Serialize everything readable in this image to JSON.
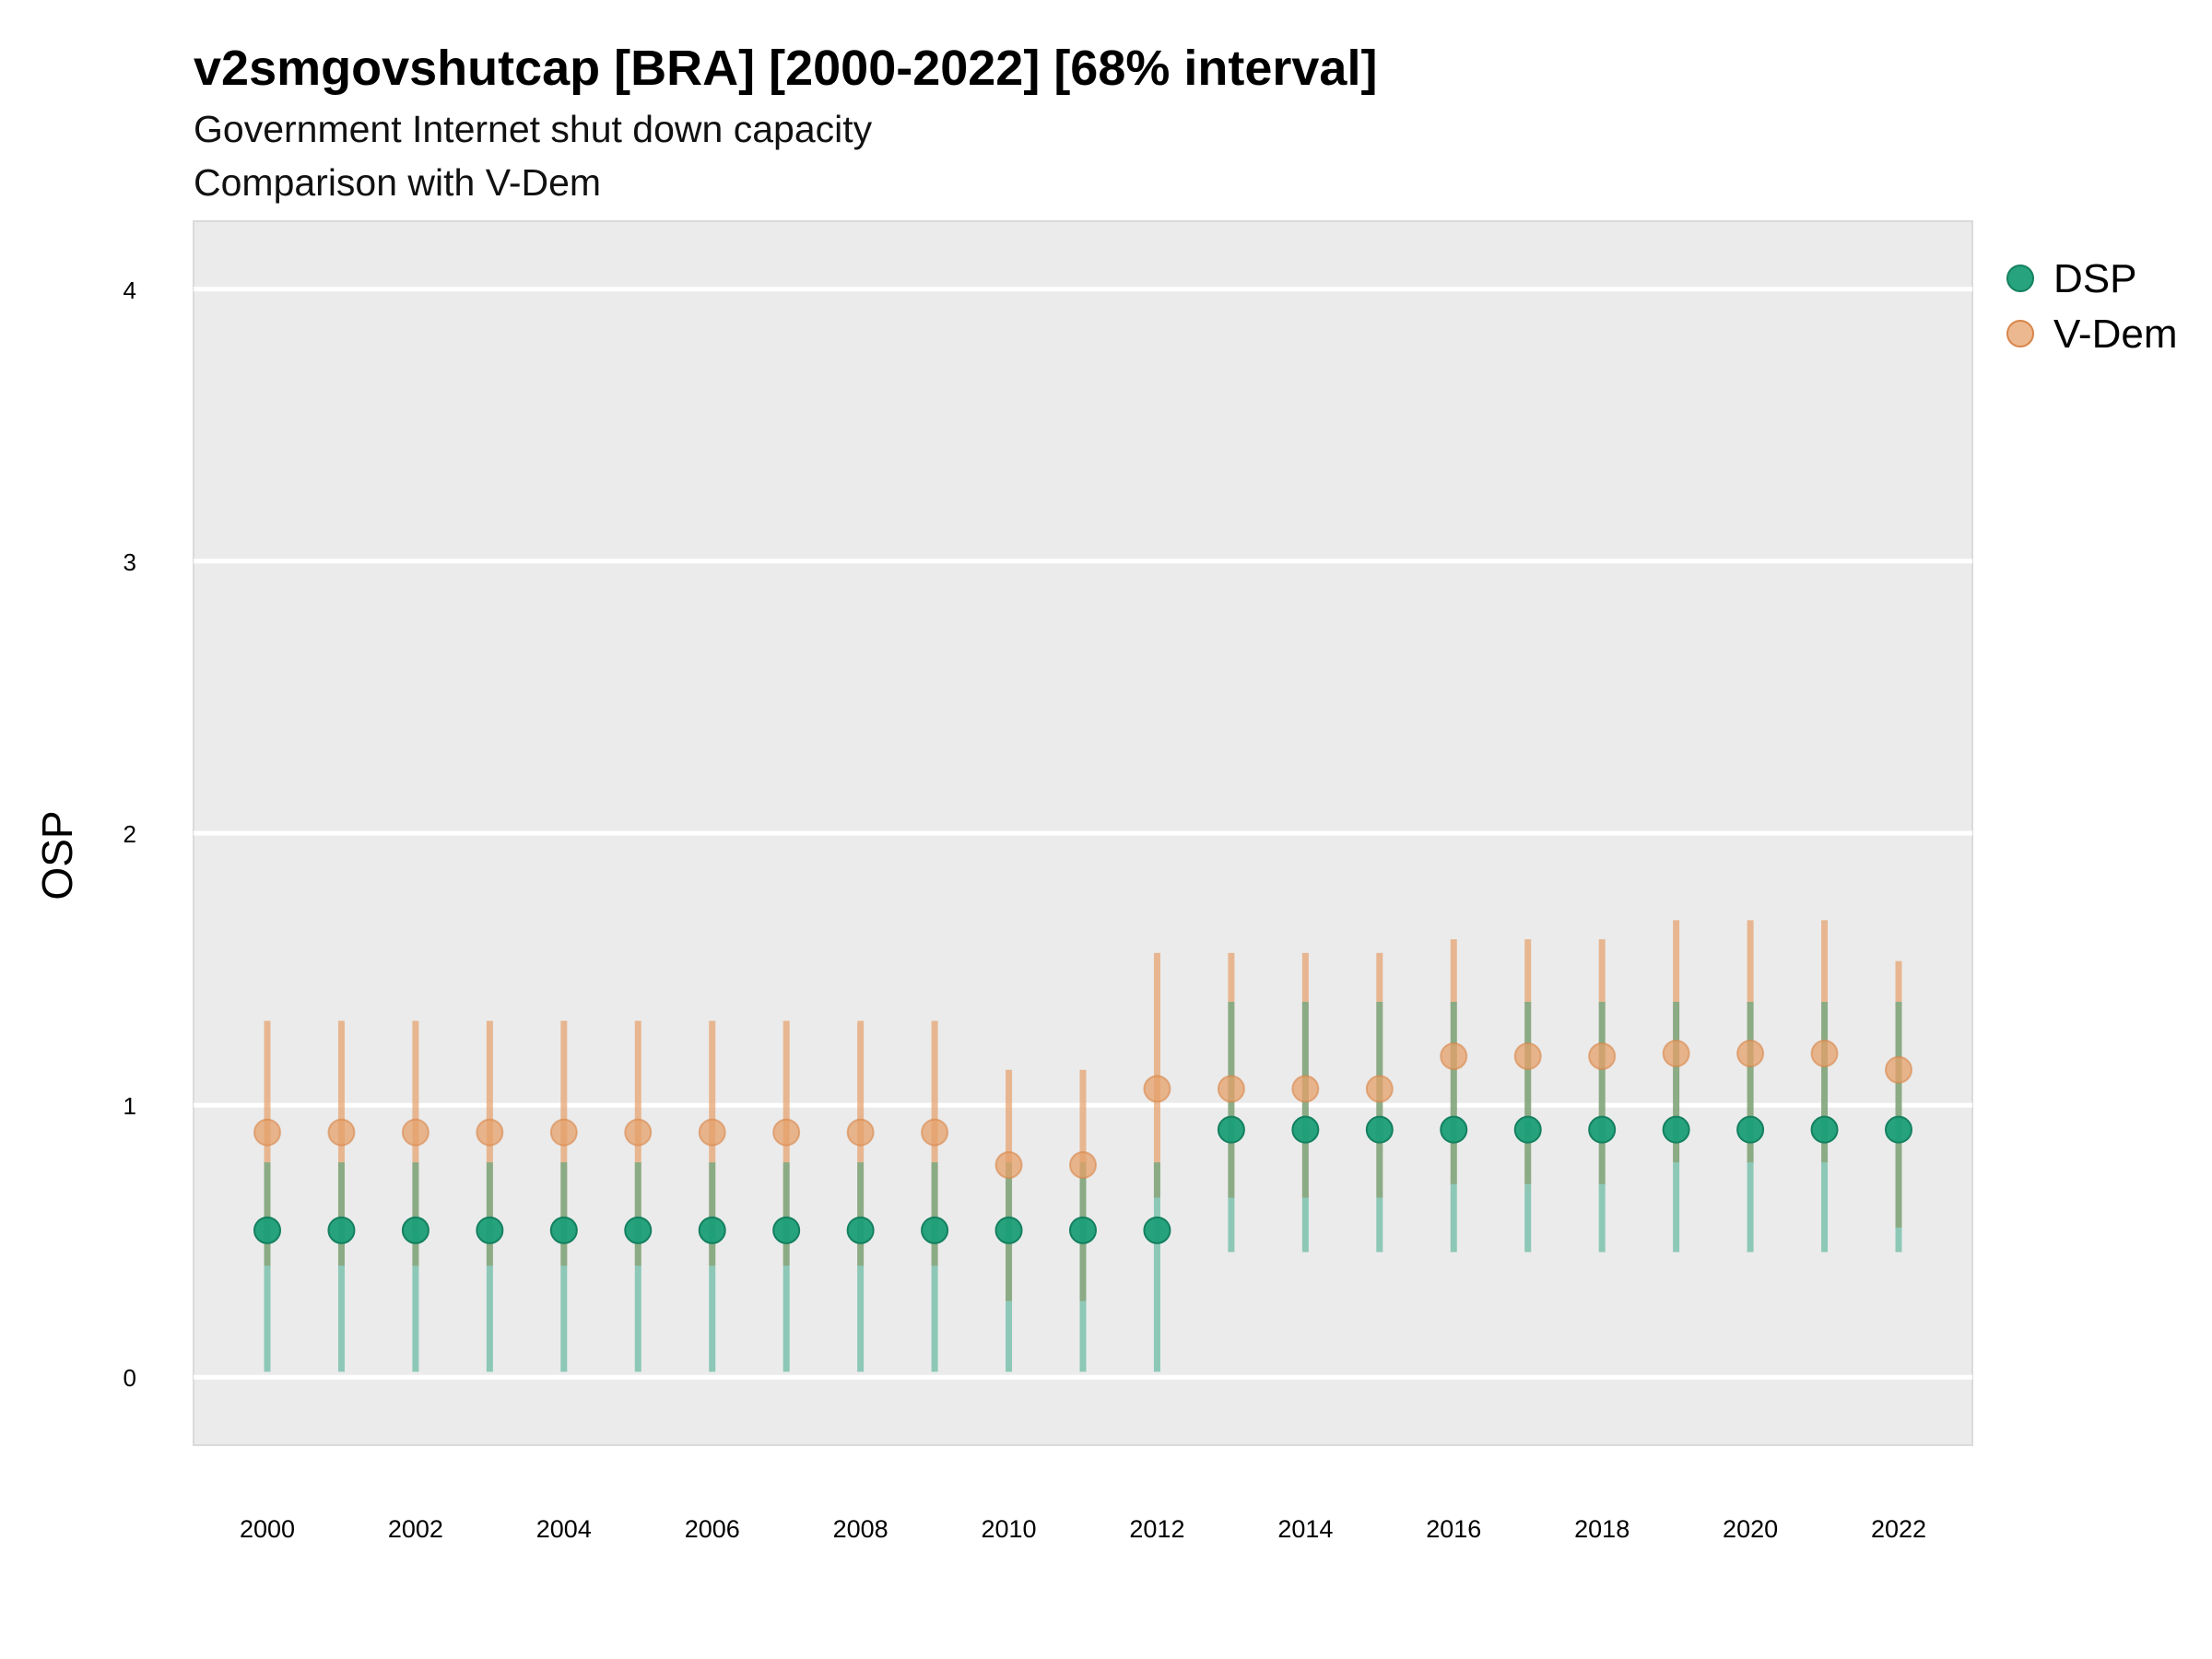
{
  "chart_data": {
    "type": "scatter",
    "title": "v2smgovshutcap [BRA] [2000-2022] [68% interval]",
    "subtitle": "Government Internet shut down capacity",
    "subtitle2": "Comparison with V-Dem",
    "xlabel": "",
    "ylabel": "OSP",
    "ylim": [
      -0.25,
      4.25
    ],
    "y_ticks": [
      "0",
      "1",
      "2",
      "3",
      "4"
    ],
    "x_ticks": [
      "2000",
      "2002",
      "2004",
      "2006",
      "2008",
      "2010",
      "2012",
      "2014",
      "2016",
      "2018",
      "2020",
      "2022"
    ],
    "x": [
      2000,
      2001,
      2002,
      2003,
      2004,
      2005,
      2006,
      2007,
      2008,
      2009,
      2010,
      2011,
      2012,
      2013,
      2014,
      2015,
      2016,
      2017,
      2018,
      2019,
      2020,
      2021,
      2022
    ],
    "grid": true,
    "legend_position": "right",
    "series": [
      {
        "name": "DSP",
        "color": "#1b9e77",
        "values": [
          0.54,
          0.54,
          0.54,
          0.54,
          0.54,
          0.54,
          0.54,
          0.54,
          0.54,
          0.54,
          0.54,
          0.54,
          0.54,
          0.91,
          0.91,
          0.91,
          0.91,
          0.91,
          0.91,
          0.91,
          0.91,
          0.91,
          0.91
        ],
        "lower": [
          0.02,
          0.02,
          0.02,
          0.02,
          0.02,
          0.02,
          0.02,
          0.02,
          0.02,
          0.02,
          0.02,
          0.02,
          0.02,
          0.46,
          0.46,
          0.46,
          0.46,
          0.46,
          0.46,
          0.46,
          0.46,
          0.46,
          0.46
        ],
        "upper": [
          0.79,
          0.79,
          0.79,
          0.79,
          0.79,
          0.79,
          0.79,
          0.79,
          0.79,
          0.79,
          0.79,
          0.79,
          0.79,
          1.38,
          1.38,
          1.38,
          1.38,
          1.38,
          1.38,
          1.38,
          1.38,
          1.38,
          1.38
        ]
      },
      {
        "name": "V-Dem",
        "color": "#e6a06a",
        "values": [
          0.9,
          0.9,
          0.9,
          0.9,
          0.9,
          0.9,
          0.9,
          0.9,
          0.9,
          0.9,
          0.78,
          0.78,
          1.06,
          1.06,
          1.06,
          1.06,
          1.18,
          1.18,
          1.18,
          1.19,
          1.19,
          1.19,
          1.13
        ],
        "lower": [
          0.41,
          0.41,
          0.41,
          0.41,
          0.41,
          0.41,
          0.41,
          0.41,
          0.41,
          0.41,
          0.28,
          0.28,
          0.66,
          0.66,
          0.66,
          0.66,
          0.71,
          0.71,
          0.71,
          0.79,
          0.79,
          0.79,
          0.55
        ],
        "upper": [
          1.31,
          1.31,
          1.31,
          1.31,
          1.31,
          1.31,
          1.31,
          1.31,
          1.31,
          1.31,
          1.13,
          1.13,
          1.56,
          1.56,
          1.56,
          1.56,
          1.61,
          1.61,
          1.61,
          1.68,
          1.68,
          1.68,
          1.53
        ]
      }
    ]
  }
}
